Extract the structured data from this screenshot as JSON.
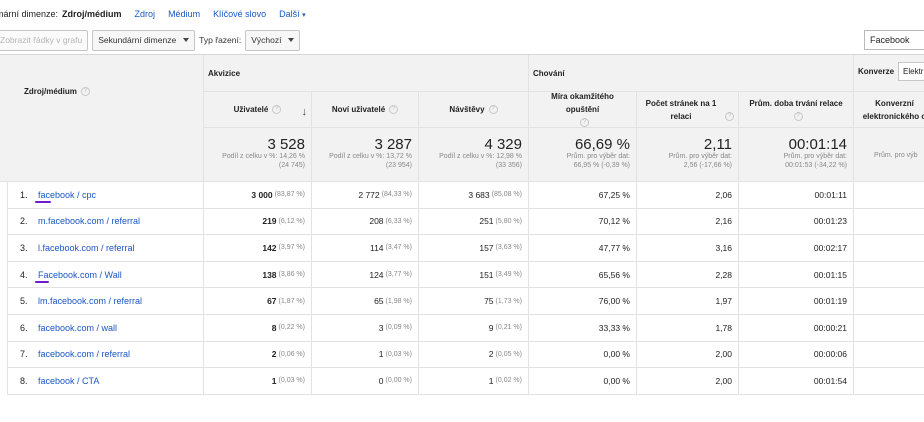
{
  "dimension_bar": {
    "label": "imární dimenze:",
    "selected": "Zdroj/médium",
    "links": [
      "Zdroj",
      "Médium",
      "Klíčové slovo",
      "Další"
    ]
  },
  "toolbar": {
    "plot_rows_label": "Zobrazit řádky v grafu",
    "secondary_dimension_label": "Sekundární dimenze",
    "sort_type_label": "Typ řazení:",
    "sort_type_value": "Výchozí",
    "search_value": "Facebook"
  },
  "table": {
    "dimension_header": "Zdroj/médium",
    "groups": {
      "acquisition": "Akvizice",
      "behavior": "Chování",
      "conversions": "Konverze",
      "conversions_select": "Elektr"
    },
    "columns": {
      "users": "Uživatelé",
      "new_users": "Noví uživatelé",
      "sessions": "Návštěvy",
      "bounce_rate": "Míra okamžitého opuštění",
      "pages_per_session": "Počet stránek na 1 relaci",
      "avg_session_duration": "Prům. doba trvání relace",
      "ecommerce_conv": "Konverzní elektronického o"
    },
    "totals": {
      "users": {
        "value": "3 528",
        "sub1": "Podíl z celku v %: 14,26 %",
        "sub2": "(24 745)"
      },
      "new_users": {
        "value": "3 287",
        "sub1": "Podíl z celku v %: 13,72 %",
        "sub2": "(23 954)"
      },
      "sessions": {
        "value": "4 329",
        "sub1": "Podíl z celku v %: 12,98 %",
        "sub2": "(33 356)"
      },
      "bounce_rate": {
        "value": "66,69 %",
        "sub1": "Prům. pro výběr dat:",
        "sub2": "66,95 % (-0,39 %)"
      },
      "pages_per_session": {
        "value": "2,11",
        "sub1": "Prům. pro výběr dat:",
        "sub2": "2,56 (-17,66 %)"
      },
      "avg_session_duration": {
        "value": "00:01:14",
        "sub1": "Prům. pro výběr dat:",
        "sub2": "00:01:53 (-34,22 %)"
      },
      "ecommerce_conv": {
        "sub1": "Prům. pro výb"
      }
    },
    "rows": [
      {
        "idx": "1.",
        "dim": "facebook / cpc",
        "users": "3 000",
        "users_pct": "(83,87 %)",
        "new_users": "2 772",
        "new_users_pct": "(84,33 %)",
        "sessions": "3 683",
        "sessions_pct": "(85,08 %)",
        "bounce": "67,25 %",
        "pages": "2,06",
        "duration": "00:01:11"
      },
      {
        "idx": "2.",
        "dim": "m.facebook.com / referral",
        "users": "219",
        "users_pct": "(6,12 %)",
        "new_users": "208",
        "new_users_pct": "(6,33 %)",
        "sessions": "251",
        "sessions_pct": "(5,80 %)",
        "bounce": "70,12 %",
        "pages": "2,16",
        "duration": "00:01:23"
      },
      {
        "idx": "3.",
        "dim": "l.facebook.com / referral",
        "users": "142",
        "users_pct": "(3,97 %)",
        "new_users": "114",
        "new_users_pct": "(3,47 %)",
        "sessions": "157",
        "sessions_pct": "(3,63 %)",
        "bounce": "47,77 %",
        "pages": "3,16",
        "duration": "00:02:17"
      },
      {
        "idx": "4.",
        "dim": "Facebook.com / Wall",
        "users": "138",
        "users_pct": "(3,86 %)",
        "new_users": "124",
        "new_users_pct": "(3,77 %)",
        "sessions": "151",
        "sessions_pct": "(3,49 %)",
        "bounce": "65,56 %",
        "pages": "2,28",
        "duration": "00:01:15"
      },
      {
        "idx": "5.",
        "dim": "lm.facebook.com / referral",
        "users": "67",
        "users_pct": "(1,87 %)",
        "new_users": "65",
        "new_users_pct": "(1,98 %)",
        "sessions": "75",
        "sessions_pct": "(1,73 %)",
        "bounce": "76,00 %",
        "pages": "1,97",
        "duration": "00:01:19"
      },
      {
        "idx": "6.",
        "dim": "facebook.com / wall",
        "users": "8",
        "users_pct": "(0,22 %)",
        "new_users": "3",
        "new_users_pct": "(0,09 %)",
        "sessions": "9",
        "sessions_pct": "(0,21 %)",
        "bounce": "33,33 %",
        "pages": "1,78",
        "duration": "00:00:21"
      },
      {
        "idx": "7.",
        "dim": "facebook.com / referral",
        "users": "2",
        "users_pct": "(0,06 %)",
        "new_users": "1",
        "new_users_pct": "(0,03 %)",
        "sessions": "2",
        "sessions_pct": "(0,05 %)",
        "bounce": "0,00 %",
        "pages": "2,00",
        "duration": "00:00:06"
      },
      {
        "idx": "8.",
        "dim": "facebook / CTA",
        "users": "1",
        "users_pct": "(0,03 %)",
        "new_users": "0",
        "new_users_pct": "(0,00 %)",
        "sessions": "1",
        "sessions_pct": "(0,02 %)",
        "bounce": "0,00 %",
        "pages": "2,00",
        "duration": "00:01:54"
      }
    ]
  },
  "colors": {
    "link": "#1a56c4",
    "underline_annotation": "#6d1ad1",
    "header_bg": "#f2f2f2"
  }
}
